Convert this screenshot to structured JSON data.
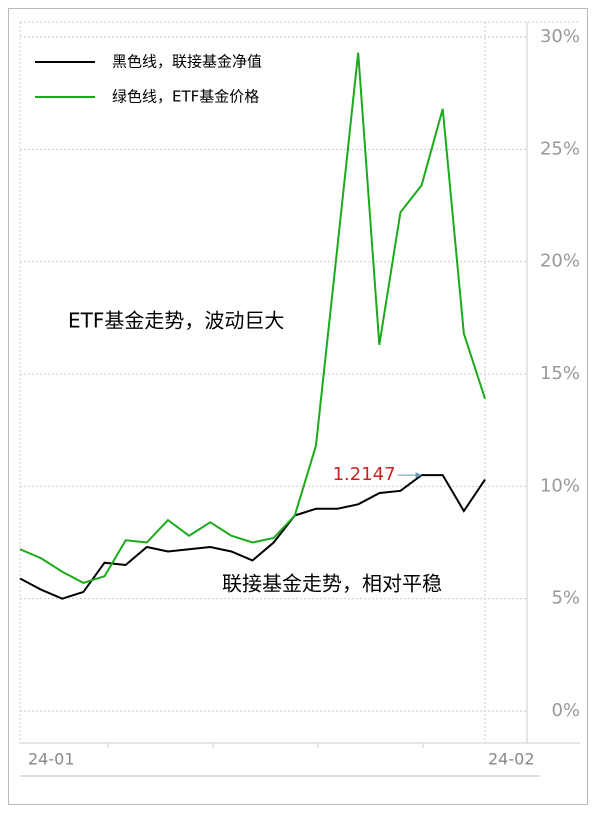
{
  "chart_data": {
    "type": "line",
    "series": [
      {
        "name": "黑色线，联接基金净值",
        "color": "#000000",
        "values": [
          5.9,
          5.4,
          5.0,
          5.3,
          6.6,
          6.5,
          7.3,
          7.1,
          7.2,
          7.3,
          7.1,
          6.7,
          7.5,
          8.7,
          9.0,
          9.0,
          9.2,
          9.7,
          9.8,
          10.5,
          10.5,
          8.9,
          10.3
        ]
      },
      {
        "name": "绿色线，ETF基金价格",
        "color": "#1aaa1a",
        "values": [
          7.2,
          6.8,
          6.2,
          5.7,
          6.0,
          7.6,
          7.5,
          8.5,
          7.8,
          8.4,
          7.8,
          7.5,
          7.7,
          8.7,
          11.8,
          20.5,
          29.3,
          16.3,
          22.2,
          23.4,
          26.8,
          16.8,
          13.9
        ]
      }
    ],
    "x_labels": [
      "24-01",
      "24-02"
    ],
    "ylim": [
      0,
      30
    ],
    "yticks": [
      {
        "value": 0,
        "label": "0%"
      },
      {
        "value": 5,
        "label": "5%"
      },
      {
        "value": 10,
        "label": "10%"
      },
      {
        "value": 15,
        "label": "15%"
      },
      {
        "value": 20,
        "label": "20%"
      },
      {
        "value": 25,
        "label": "25%"
      },
      {
        "value": 30,
        "label": "30%"
      }
    ],
    "grid": true,
    "annotations": [
      "ETF基金走势，波动巨大",
      "联接基金走势，相对平稳"
    ],
    "point_label": {
      "text": "1.2147",
      "series": 0,
      "index": 19,
      "color": "#cc2222"
    }
  }
}
